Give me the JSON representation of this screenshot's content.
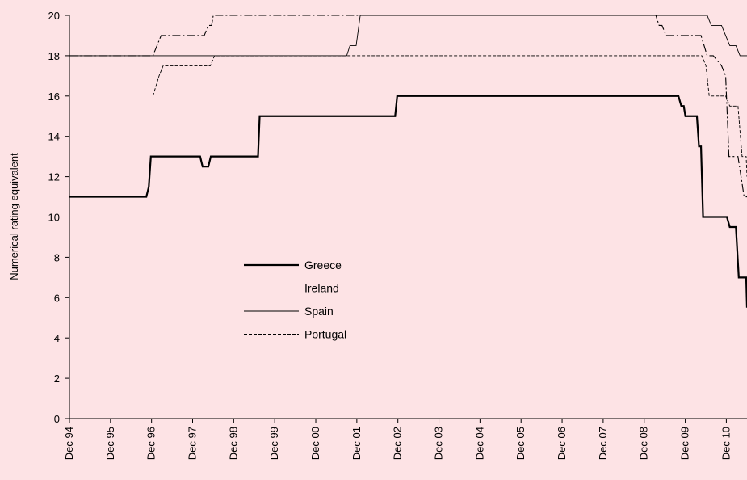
{
  "chart_data": {
    "type": "line",
    "title": "",
    "xlabel": "",
    "ylabel": "Numerical rating equivalent",
    "ylim": [
      0,
      20
    ],
    "y_ticks": [
      "0",
      "2",
      "4",
      "6",
      "8",
      "10",
      "12",
      "14",
      "16",
      "18",
      "20"
    ],
    "x_range": [
      1994.917,
      2011.42
    ],
    "x_ticks": [
      "Dec 94",
      "Dec 95",
      "Dec 96",
      "Dec 97",
      "Dec 98",
      "Dec 99",
      "Dec 00",
      "Dec 01",
      "Dec 02",
      "Dec 03",
      "Dec 04",
      "Dec 05",
      "Dec 06",
      "Dec 07",
      "Dec 08",
      "Dec 09",
      "Dec 10"
    ],
    "grid": false,
    "legend_position": "center-left",
    "series": [
      {
        "name": "Greece",
        "style": "solid-thick",
        "color": "#000000",
        "points": [
          [
            1994.92,
            11
          ],
          [
            1996.79,
            11
          ],
          [
            1996.85,
            11.5
          ],
          [
            1996.9,
            13
          ],
          [
            1998.1,
            13
          ],
          [
            1998.16,
            12.5
          ],
          [
            1998.3,
            12.5
          ],
          [
            1998.36,
            13
          ],
          [
            1999.51,
            13
          ],
          [
            1999.55,
            15
          ],
          [
            2002.85,
            15
          ],
          [
            2002.9,
            16
          ],
          [
            2009.75,
            16
          ],
          [
            2009.82,
            15.5
          ],
          [
            2009.88,
            15.5
          ],
          [
            2009.92,
            15
          ],
          [
            2010.2,
            15
          ],
          [
            2010.25,
            13.5
          ],
          [
            2010.3,
            13.5
          ],
          [
            2010.35,
            10
          ],
          [
            2010.93,
            10
          ],
          [
            2011.0,
            9.5
          ],
          [
            2011.15,
            9.5
          ],
          [
            2011.22,
            7
          ],
          [
            2011.4,
            7
          ],
          [
            2011.42,
            5.5
          ]
        ]
      },
      {
        "name": "Ireland",
        "style": "dash-dot",
        "color": "#000000",
        "points": [
          [
            1994.92,
            18
          ],
          [
            1996.95,
            18
          ],
          [
            1997.05,
            18.5
          ],
          [
            1997.15,
            19
          ],
          [
            1998.2,
            19
          ],
          [
            1998.3,
            19.5
          ],
          [
            1998.38,
            19.5
          ],
          [
            1998.42,
            20
          ],
          [
            2009.2,
            20
          ],
          [
            2009.28,
            19.5
          ],
          [
            2009.35,
            19.5
          ],
          [
            2009.45,
            19
          ],
          [
            2010.3,
            19
          ],
          [
            2010.45,
            18
          ],
          [
            2010.6,
            18
          ],
          [
            2010.8,
            17.5
          ],
          [
            2010.9,
            17
          ],
          [
            2010.98,
            13
          ],
          [
            2011.2,
            13
          ],
          [
            2011.35,
            11
          ],
          [
            2011.42,
            11
          ]
        ]
      },
      {
        "name": "Spain",
        "style": "solid-thin",
        "color": "#000000",
        "points": [
          [
            1994.92,
            18
          ],
          [
            2001.67,
            18
          ],
          [
            2001.75,
            18.5
          ],
          [
            2001.9,
            18.5
          ],
          [
            2002.0,
            20
          ],
          [
            2010.45,
            20
          ],
          [
            2010.55,
            19.5
          ],
          [
            2010.8,
            19.5
          ],
          [
            2010.9,
            19
          ],
          [
            2011.0,
            18.5
          ],
          [
            2011.15,
            18.5
          ],
          [
            2011.25,
            18
          ],
          [
            2011.42,
            18
          ]
        ]
      },
      {
        "name": "Portugal",
        "style": "dashed",
        "color": "#000000",
        "points": [
          [
            1996.95,
            16
          ],
          [
            1997.1,
            17
          ],
          [
            1997.2,
            17.5
          ],
          [
            1998.35,
            17.5
          ],
          [
            1998.45,
            18
          ],
          [
            2010.32,
            18
          ],
          [
            2010.42,
            17.5
          ],
          [
            2010.5,
            16
          ],
          [
            2010.9,
            16
          ],
          [
            2011.0,
            15.5
          ],
          [
            2011.2,
            15.5
          ],
          [
            2011.3,
            13
          ],
          [
            2011.4,
            13
          ],
          [
            2011.42,
            12
          ]
        ]
      }
    ]
  }
}
